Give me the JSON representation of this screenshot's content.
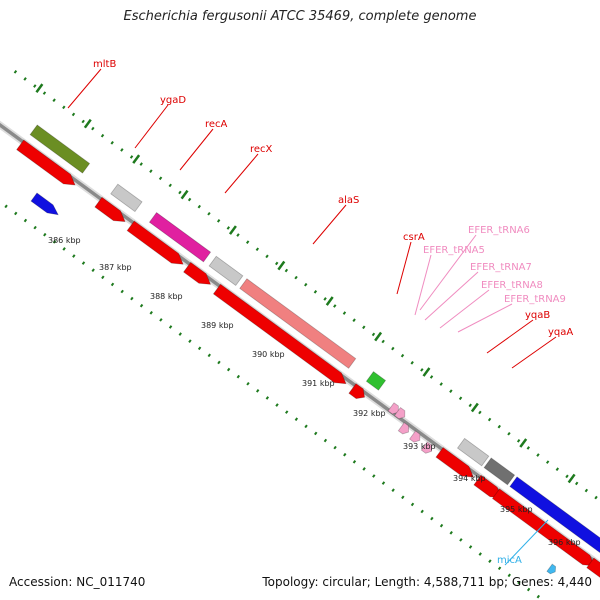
{
  "title": "Escherichia fergusonii ATCC 35469, complete genome",
  "footer": {
    "accession": "Accession: NC_011740",
    "topology": "Topology: circular; Length: 4,588,711 bp; Genes: 4,440"
  },
  "axis": {
    "ticks": [
      "386 kbp",
      "387 kbp",
      "388 kbp",
      "389 kbp",
      "390 kbp",
      "391 kbp",
      "392 kbp",
      "393 kbp",
      "394 kbp",
      "395 kbp",
      "396 kbp"
    ]
  },
  "colors": {
    "cds": "#ee0000",
    "gene": "#c8c8c8",
    "trna": "#f4a0c8",
    "ncrna": "#40b8f0",
    "backbone": "#999999",
    "gc_tick": "#1e7a1e",
    "label_red": "#dd0000",
    "label_pink": "#f08cc0",
    "label_blue": "#30b0e8"
  },
  "labels": [
    {
      "name": "mltB",
      "color": "#dd0000"
    },
    {
      "name": "ygaD",
      "color": "#dd0000"
    },
    {
      "name": "recA",
      "color": "#dd0000"
    },
    {
      "name": "recX",
      "color": "#dd0000"
    },
    {
      "name": "alaS",
      "color": "#dd0000"
    },
    {
      "name": "csrA",
      "color": "#dd0000"
    },
    {
      "name": "EFER_tRNA6",
      "color": "#f08cc0"
    },
    {
      "name": "EFER_tRNA5",
      "color": "#f08cc0"
    },
    {
      "name": "EFER_tRNA7",
      "color": "#f08cc0"
    },
    {
      "name": "EFER_tRNA8",
      "color": "#f08cc0"
    },
    {
      "name": "EFER_tRNA9",
      "color": "#f08cc0"
    },
    {
      "name": "yqaB",
      "color": "#dd0000"
    },
    {
      "name": "yqaA",
      "color": "#dd0000"
    },
    {
      "name": "micA",
      "color": "#30b0e8"
    }
  ]
}
